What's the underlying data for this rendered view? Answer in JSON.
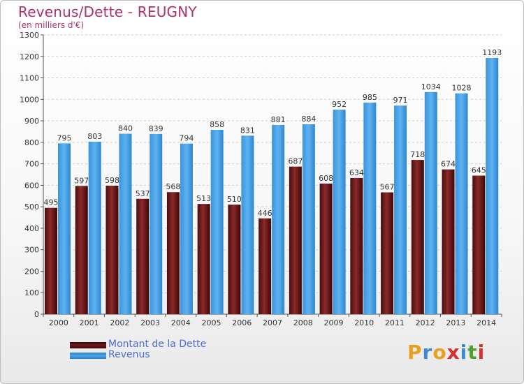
{
  "header": {
    "title": "Revenus/Dette - REUGNY",
    "subtitle": "(en milliers d'€)"
  },
  "legend": {
    "items": [
      {
        "label": "Montant de la Dette",
        "color": "#6b1a1a"
      },
      {
        "label": "Revenus",
        "color": "#4aa3e8"
      }
    ]
  },
  "brand": {
    "letters": [
      "P",
      "r",
      "o",
      "x",
      "i",
      "t",
      "i"
    ],
    "colors": [
      "#e8a020",
      "#3a8ad8",
      "#e8a020",
      "#d83030",
      "#3a8ad8",
      "#50a030",
      "#d83030"
    ]
  },
  "chart_data": {
    "type": "bar",
    "title": "Revenus/Dette - REUGNY",
    "subtitle": "(en milliers d'€)",
    "categories": [
      "2000",
      "2001",
      "2002",
      "2003",
      "2004",
      "2005",
      "2006",
      "2007",
      "2008",
      "2009",
      "2010",
      "2011",
      "2012",
      "2013",
      "2014"
    ],
    "series": [
      {
        "name": "Montant de la Dette",
        "color": "#6b1a1a",
        "values": [
          495,
          597,
          598,
          537,
          568,
          513,
          510,
          446,
          687,
          608,
          634,
          567,
          718,
          674,
          645
        ]
      },
      {
        "name": "Revenus",
        "color": "#4aa3e8",
        "values": [
          795,
          803,
          840,
          839,
          794,
          858,
          831,
          881,
          884,
          952,
          985,
          971,
          1034,
          1028,
          1193
        ]
      }
    ],
    "ylim": [
      0,
      1300
    ],
    "yticks": [
      0,
      100,
      200,
      300,
      400,
      500,
      600,
      700,
      800,
      900,
      1000,
      1100,
      1200,
      1300
    ],
    "grid": true,
    "legend_position": "bottom-left"
  }
}
